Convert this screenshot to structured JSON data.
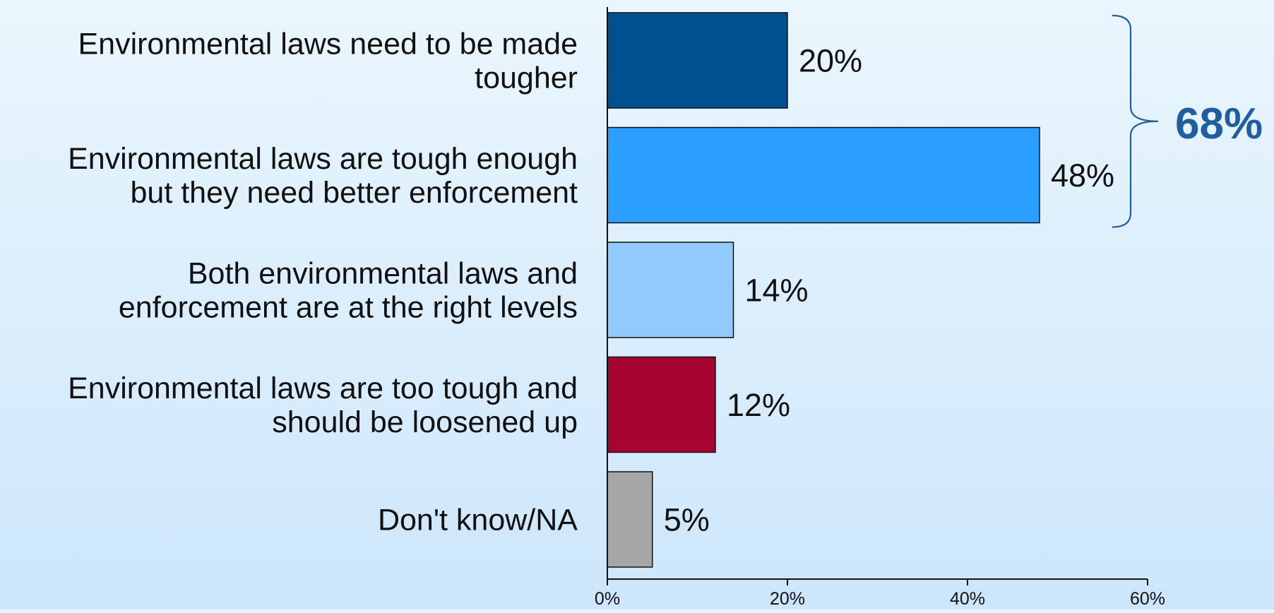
{
  "chart_data": {
    "type": "bar",
    "orientation": "horizontal",
    "title": "",
    "xlabel": "",
    "ylabel": "",
    "categories": [
      [
        "Environmental laws need to be made",
        "tougher"
      ],
      [
        "Environmental laws are tough enough",
        "but they need better enforcement"
      ],
      [
        "Both environmental laws and",
        "enforcement are at the right levels"
      ],
      [
        "Environmental laws are too tough and",
        "should be loosened up"
      ],
      [
        "Don't know/NA"
      ]
    ],
    "values": [
      20,
      48,
      14,
      12,
      5
    ],
    "value_labels": [
      "20%",
      "48%",
      "14%",
      "12%",
      "5%"
    ],
    "colors": [
      "#004f8f",
      "#2b9fff",
      "#90caff",
      "#a50530",
      "#a6a6a6"
    ],
    "xlim": [
      0,
      60
    ],
    "xticks": [
      0,
      20,
      40,
      60
    ],
    "xtick_labels": [
      "0%",
      "20%",
      "40%",
      "60%"
    ],
    "grid": false,
    "legend": "none",
    "annotation": {
      "label": "68%",
      "covers_categories": [
        0,
        1
      ],
      "color": "#1f5f9f"
    }
  }
}
